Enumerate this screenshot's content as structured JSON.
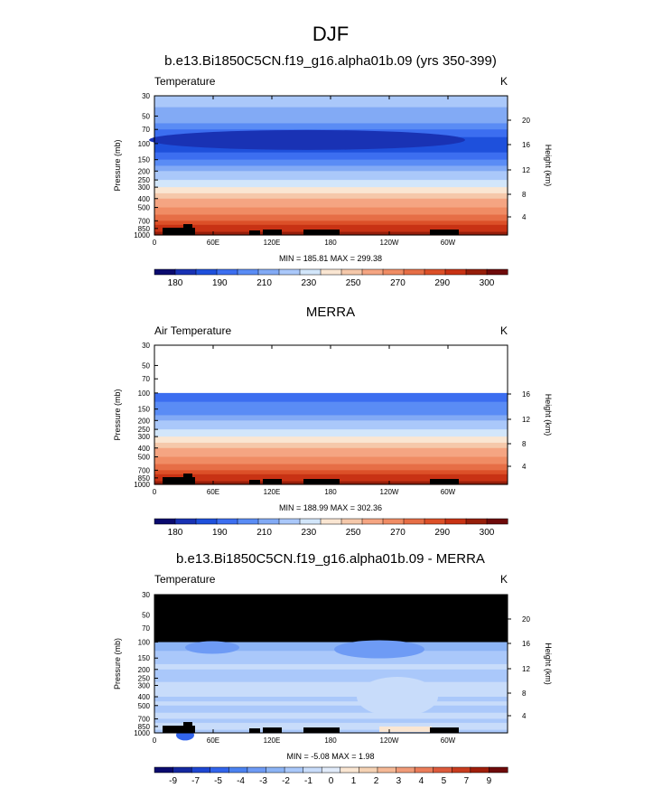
{
  "figure": {
    "title": "DJF",
    "pressure_axis_label": "Pressure (mb)",
    "height_axis_label": "Height (km)",
    "pressure_ticks": [
      "30",
      "50",
      "70",
      "100",
      "150",
      "200",
      "250",
      "300",
      "400",
      "500",
      "700",
      "850",
      "1000"
    ],
    "lon_ticks": [
      "0",
      "60E",
      "120E",
      "180",
      "120W",
      "60W"
    ]
  },
  "chart_data": [
    {
      "type": "heatmap",
      "title": "b.e13.Bi1850C5CN.f19_g16.alpha01b.09 (yrs 350-399)",
      "left_label": "Temperature",
      "units": "K",
      "min_max_text": "MIN = 185.81  MAX = 299.38",
      "min": 185.81,
      "max": 299.38,
      "height_ticks": [
        "20",
        "16",
        "12",
        "8",
        "4"
      ],
      "colorbar_labels": [
        "180",
        "190",
        "210",
        "230",
        "250",
        "270",
        "290",
        "300"
      ],
      "colorbar_colors": [
        "#0a0a6e",
        "#1932b4",
        "#1e50dc",
        "#3c6ef0",
        "#5a8cf5",
        "#82aaf5",
        "#aac8fa",
        "#d2e6fa",
        "#fae6d2",
        "#f5c8aa",
        "#f5a582",
        "#f08c64",
        "#e66e46",
        "#dc5028",
        "#c83214",
        "#961e0a",
        "#6e0a0a"
      ]
    },
    {
      "type": "heatmap",
      "title": "MERRA",
      "left_label": "Air Temperature",
      "units": "K",
      "min_max_text": "MIN = 188.99  MAX = 302.36",
      "min": 188.99,
      "max": 302.36,
      "height_ticks": [
        "16",
        "12",
        "8",
        "4"
      ],
      "colorbar_labels": [
        "180",
        "190",
        "210",
        "230",
        "250",
        "270",
        "290",
        "300"
      ],
      "colorbar_colors": [
        "#0a0a6e",
        "#1932b4",
        "#1e50dc",
        "#3c6ef0",
        "#5a8cf5",
        "#82aaf5",
        "#aac8fa",
        "#d2e6fa",
        "#fae6d2",
        "#f5c8aa",
        "#f5a582",
        "#f08c64",
        "#e66e46",
        "#dc5028",
        "#c83214",
        "#961e0a",
        "#6e0a0a"
      ]
    },
    {
      "type": "heatmap",
      "title": "b.e13.Bi1850C5CN.f19_g16.alpha01b.09 - MERRA",
      "left_label": "Temperature",
      "units": "K",
      "min_max_text": "MIN = -5.08  MAX =  1.98",
      "min": -5.08,
      "max": 1.98,
      "height_ticks": [
        "20",
        "16",
        "12",
        "8",
        "4"
      ],
      "colorbar_labels": [
        "-9",
        "-7",
        "-5",
        "-4",
        "-3",
        "-2",
        "-1",
        "0",
        "1",
        "2",
        "3",
        "4",
        "5",
        "7",
        "9"
      ],
      "colorbar_colors": [
        "#0a0a6e",
        "#1428a0",
        "#1e46d2",
        "#3264eb",
        "#4b82f0",
        "#6e9bf5",
        "#8cb4f5",
        "#aac8fa",
        "#c8dcfa",
        "#e1ebfa",
        "#fae6d2",
        "#f5d2b4",
        "#f5b996",
        "#f09b78",
        "#eb7d5a",
        "#dc5a3c",
        "#c83c1e",
        "#a01e0a",
        "#6e0a0a"
      ]
    }
  ]
}
